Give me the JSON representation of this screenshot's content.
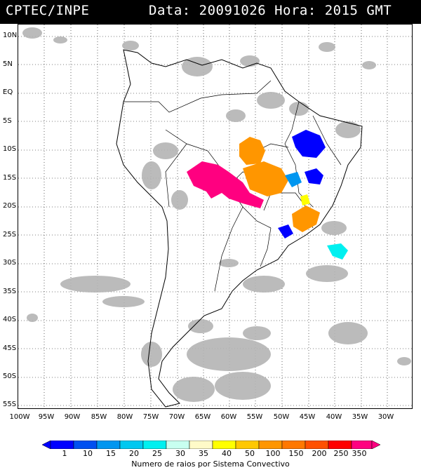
{
  "header": {
    "org": "CPTEC/INPE",
    "datetime": "Data: 20091026 Hora: 2015 GMT"
  },
  "axes": {
    "lat_labels": [
      "10N",
      "5N",
      "EQ",
      "5S",
      "10S",
      "15S",
      "20S",
      "25S",
      "30S",
      "35S",
      "40S",
      "45S",
      "50S",
      "55S"
    ],
    "lon_labels": [
      "100W",
      "95W",
      "90W",
      "85W",
      "80W",
      "75W",
      "70W",
      "65W",
      "60W",
      "55W",
      "50W",
      "45W",
      "40W",
      "35W",
      "30W"
    ]
  },
  "legend": {
    "caption": "Numero de raios por Sistema Convectivo",
    "values": [
      "1",
      "10",
      "15",
      "20",
      "25",
      "30",
      "35",
      "40",
      "50",
      "100",
      "150",
      "200",
      "250",
      "350"
    ],
    "colors": [
      "#0000ff",
      "#0050f0",
      "#0096f0",
      "#00c8f0",
      "#00f0f0",
      "#c8fff0",
      "#fffac8",
      "#ffff00",
      "#ffc800",
      "#ff9600",
      "#ff7800",
      "#ff5000",
      "#ff0000",
      "#ff0080"
    ]
  },
  "map": {
    "background": "#ffffff",
    "cloud_color": "#b4b4b4",
    "border_color": "#000000",
    "grid_color": "#000000"
  }
}
